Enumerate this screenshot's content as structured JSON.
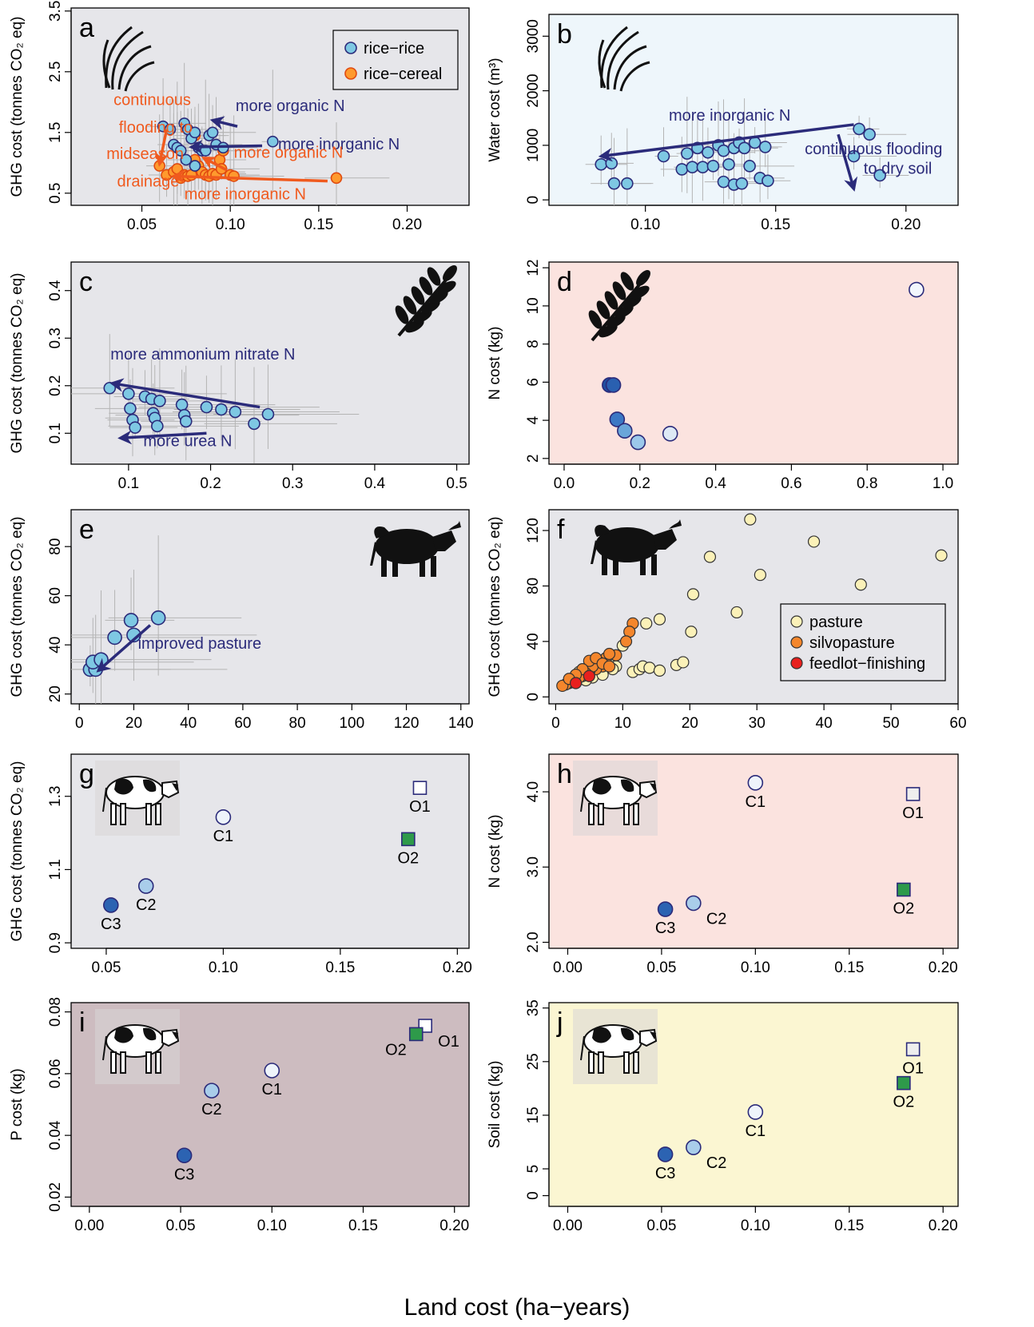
{
  "figure": {
    "x_axis_label": "Land cost (ha−years)"
  },
  "colors": {
    "rice_rice": "#7ec8e3",
    "rice_cereal": "#ff9a2e",
    "blue_arrow": "#2b2b7a",
    "orange_arrow": "#f05a1e",
    "bg_grey": "#e6e6ea",
    "bg_blue": "#eef6fb",
    "bg_pink": "#fbe3df",
    "bg_mauve": "#cdbcc0",
    "bg_yellow": "#fbf6d2",
    "pasture": "#fbf1b8",
    "silvopasture": "#f4862c",
    "feedlot": "#e8201e",
    "organic_green": "#2e9a4a"
  },
  "chart_data": [
    {
      "id": "a",
      "type": "scatter",
      "panel_letter": "a",
      "icon": "rice-icon",
      "ylabel": "GHG cost (tonnes CO₂ eq)",
      "xlim": [
        0.01,
        0.235
      ],
      "ylim": [
        0.3,
        3.55
      ],
      "xticks": [
        0.05,
        0.1,
        0.15,
        0.2
      ],
      "xtick_labels": [
        "0.05",
        "0.10",
        "0.15",
        "0.20"
      ],
      "yticks": [
        0.5,
        1.5,
        2.5,
        3.5
      ],
      "ytick_labels": [
        "0.5",
        "1.5",
        "2.5",
        "3.5"
      ],
      "legend": {
        "position": "top-right",
        "entries": [
          {
            "label": "rice−rice",
            "color": "#7ec8e3"
          },
          {
            "label": "rice−cereal",
            "color": "#ff9a2e"
          }
        ]
      },
      "series": [
        {
          "name": "rice−rice",
          "color": "#7ec8e3",
          "x": [
            0.062,
            0.066,
            0.068,
            0.07,
            0.072,
            0.074,
            0.076,
            0.078,
            0.08,
            0.082,
            0.084,
            0.086,
            0.088,
            0.09,
            0.092,
            0.096,
            0.124,
            0.075,
            0.08
          ],
          "y": [
            1.6,
            1.55,
            1.3,
            1.25,
            1.2,
            1.65,
            1.55,
            1.4,
            1.5,
            1.25,
            1.2,
            1.2,
            1.45,
            1.5,
            1.3,
            1.25,
            1.35,
            1.05,
            0.95
          ]
        },
        {
          "name": "rice−cereal",
          "color": "#ff9a2e",
          "x": [
            0.06,
            0.064,
            0.068,
            0.07,
            0.072,
            0.074,
            0.076,
            0.078,
            0.08,
            0.082,
            0.084,
            0.086,
            0.088,
            0.09,
            0.092,
            0.094,
            0.096,
            0.1,
            0.102,
            0.16,
            0.08,
            0.095
          ],
          "y": [
            0.95,
            0.8,
            0.85,
            0.9,
            0.75,
            0.8,
            0.78,
            0.8,
            1.45,
            0.95,
            0.85,
            0.8,
            0.78,
            0.82,
            0.8,
            1.05,
            1.2,
            0.8,
            0.78,
            0.75,
            1.05,
            0.9
          ]
        }
      ],
      "annotations": [
        {
          "text": "more organic N",
          "color": "#2b2b7a"
        },
        {
          "text": "more inorganic N",
          "color": "#2b2b7a"
        },
        {
          "text": "continuous",
          "color": "#f05a1e"
        },
        {
          "text": "flooding to",
          "color": "#f05a1e"
        },
        {
          "text": "midseason",
          "color": "#f05a1e"
        },
        {
          "text": "drainage",
          "color": "#f05a1e"
        },
        {
          "text": "more organic N",
          "color": "#f05a1e"
        },
        {
          "text": "more inorganic N",
          "color": "#f05a1e"
        }
      ]
    },
    {
      "id": "b",
      "type": "scatter",
      "panel_letter": "b",
      "icon": "rice-icon",
      "ylabel": "Water cost (m³)",
      "xlim": [
        0.063,
        0.22
      ],
      "ylim": [
        -100,
        3400
      ],
      "xticks": [
        0.1,
        0.15,
        0.2
      ],
      "xtick_labels": [
        "0.10",
        "0.15",
        "0.20"
      ],
      "yticks": [
        0,
        1000,
        2000,
        3000
      ],
      "ytick_labels": [
        "0",
        "1000",
        "2000",
        "3000"
      ],
      "series": [
        {
          "name": "",
          "color": "#7ec8e3",
          "x": [
            0.083,
            0.087,
            0.088,
            0.093,
            0.107,
            0.114,
            0.116,
            0.118,
            0.12,
            0.122,
            0.124,
            0.126,
            0.128,
            0.13,
            0.132,
            0.134,
            0.136,
            0.138,
            0.14,
            0.142,
            0.144,
            0.146,
            0.147,
            0.18,
            0.182,
            0.186,
            0.19,
            0.13,
            0.134,
            0.137
          ],
          "y": [
            650,
            670,
            300,
            300,
            800,
            560,
            850,
            600,
            950,
            600,
            870,
            620,
            1000,
            900,
            650,
            950,
            1050,
            950,
            620,
            1050,
            400,
            970,
            350,
            800,
            1300,
            1200,
            450,
            330,
            280,
            300
          ]
        }
      ],
      "annotations": [
        {
          "text": "more inorganic N",
          "color": "#2b2b7a"
        },
        {
          "text": "continuous flooding",
          "color": "#2b2b7a"
        },
        {
          "text": "to dry soil",
          "color": "#2b2b7a"
        }
      ]
    },
    {
      "id": "c",
      "type": "scatter",
      "panel_letter": "c",
      "icon": "wheat-icon",
      "ylabel": "GHG cost (tonnes CO₂ eq)",
      "xlim": [
        0.03,
        0.515
      ],
      "ylim": [
        0.035,
        0.46
      ],
      "xticks": [
        0.1,
        0.2,
        0.3,
        0.4,
        0.5
      ],
      "xtick_labels": [
        "0.1",
        "0.2",
        "0.3",
        "0.4",
        "0.5"
      ],
      "yticks": [
        0.1,
        0.2,
        0.3,
        0.4
      ],
      "ytick_labels": [
        "0.1",
        "0.2",
        "0.3",
        "0.4"
      ],
      "series": [
        {
          "name": "",
          "color": "#7ec8e3",
          "x": [
            0.077,
            0.1,
            0.102,
            0.105,
            0.108,
            0.12,
            0.128,
            0.13,
            0.132,
            0.135,
            0.138,
            0.165,
            0.168,
            0.17,
            0.195,
            0.213,
            0.23,
            0.253,
            0.27
          ],
          "y": [
            0.195,
            0.183,
            0.152,
            0.128,
            0.112,
            0.177,
            0.172,
            0.142,
            0.132,
            0.115,
            0.168,
            0.16,
            0.138,
            0.125,
            0.155,
            0.15,
            0.145,
            0.12,
            0.14
          ]
        }
      ],
      "annotations": [
        {
          "text": "more ammonium nitrate N",
          "color": "#2b2b7a"
        },
        {
          "text": "more urea N",
          "color": "#2b2b7a"
        }
      ]
    },
    {
      "id": "d",
      "type": "scatter",
      "panel_letter": "d",
      "icon": "wheat-icon",
      "ylabel": "N cost (kg)",
      "xlim": [
        -0.04,
        1.04
      ],
      "ylim": [
        1.7,
        12.3
      ],
      "xticks": [
        0.0,
        0.2,
        0.4,
        0.6,
        0.8,
        1.0
      ],
      "xtick_labels": [
        "0.0",
        "0.2",
        "0.4",
        "0.6",
        "0.8",
        "1.0"
      ],
      "yticks": [
        2,
        4,
        6,
        8,
        10,
        12
      ],
      "ytick_labels": [
        "2",
        "4",
        "6",
        "8",
        "10",
        "12"
      ],
      "series": [
        {
          "name": "",
          "color": "#7ec8e3",
          "x": [
            0.12,
            0.13,
            0.14,
            0.16,
            0.195,
            0.28,
            0.93
          ],
          "y": [
            5.85,
            5.85,
            4.05,
            3.45,
            2.85,
            3.3,
            10.85
          ],
          "fills": [
            "#1e4fa0",
            "#2a60b0",
            "#3b78c4",
            "#6aa6d9",
            "#9cc8ea",
            "#dde9f5",
            "#f2f6fc"
          ]
        }
      ]
    },
    {
      "id": "e",
      "type": "scatter",
      "panel_letter": "e",
      "icon": "bull-icon",
      "ylabel": "GHG cost (tonnes CO₂ eq)",
      "xlim": [
        -3,
        143
      ],
      "ylim": [
        16,
        95
      ],
      "xticks": [
        0,
        20,
        40,
        60,
        80,
        100,
        120,
        140
      ],
      "xtick_labels": [
        "0",
        "20",
        "40",
        "60",
        "80",
        "100",
        "120",
        "140"
      ],
      "yticks": [
        20,
        40,
        60,
        80
      ],
      "ytick_labels": [
        "20",
        "40",
        "60",
        "80"
      ],
      "series": [
        {
          "name": "",
          "color": "#7ec8e3",
          "x": [
            4,
            6,
            5,
            8,
            13,
            20,
            19,
            29
          ],
          "y": [
            30,
            30,
            33,
            34,
            43,
            44,
            50,
            51
          ]
        }
      ],
      "annotations": [
        {
          "text": "improved pasture",
          "color": "#2b2b7a"
        }
      ]
    },
    {
      "id": "f",
      "type": "scatter",
      "panel_letter": "f",
      "icon": "bull-icon",
      "ylabel": "GHG cost (tonnes CO₂ eq)",
      "xlim": [
        -1,
        60
      ],
      "ylim": [
        -5,
        135
      ],
      "xticks": [
        0,
        10,
        20,
        30,
        40,
        50,
        60
      ],
      "xtick_labels": [
        "0",
        "10",
        "20",
        "30",
        "40",
        "50",
        "60"
      ],
      "yticks": [
        0,
        40,
        80,
        120
      ],
      "ytick_labels": [
        "0",
        "40",
        "80",
        "120"
      ],
      "legend": {
        "position": "bottom-right",
        "entries": [
          {
            "label": "pasture",
            "color": "#fbf1b8"
          },
          {
            "label": "silvopasture",
            "color": "#f4862c"
          },
          {
            "label": "feedlot−finishing",
            "color": "#e8201e"
          }
        ]
      },
      "series": [
        {
          "name": "pasture",
          "color": "#fbf1b8",
          "x": [
            29,
            38.5,
            57.5,
            23,
            30.5,
            45.5,
            20.5,
            15.5,
            13.5,
            27,
            10,
            20.2,
            11.5,
            12.5,
            13,
            14,
            15.5,
            18,
            19,
            5,
            6,
            7,
            8,
            3,
            4,
            9,
            6.5,
            7.5,
            2.5,
            5.5,
            8.5,
            3.5,
            4.5,
            7
          ],
          "y": [
            128,
            112,
            102,
            101,
            88,
            81,
            74,
            56,
            53,
            61,
            37,
            47,
            18,
            20,
            22,
            21,
            19,
            23,
            25,
            20,
            22,
            18,
            24,
            15,
            16,
            22,
            25,
            28,
            12,
            14,
            20,
            18,
            12,
            16
          ]
        },
        {
          "name": "silvopasture",
          "color": "#f4862c",
          "x": [
            11.5,
            11,
            10.5,
            9,
            7.5,
            8,
            6.5,
            7,
            6,
            5,
            5.5,
            4,
            4.5,
            3,
            3.5,
            2,
            2.5,
            1.5,
            1,
            5,
            6,
            7,
            4,
            3,
            2,
            8
          ],
          "y": [
            53,
            47,
            40,
            30,
            28,
            31,
            25,
            22,
            20,
            18,
            22,
            15,
            17,
            12,
            14,
            10,
            11,
            9,
            8,
            26,
            28,
            24,
            20,
            16,
            13,
            22
          ]
        },
        {
          "name": "feedlot−finishing",
          "color": "#e8201e",
          "x": [
            5,
            3
          ],
          "y": [
            15,
            10
          ]
        }
      ]
    },
    {
      "id": "g",
      "type": "scatter",
      "panel_letter": "g",
      "icon": "cow-icon",
      "ylabel": "GHG cost (tonnes CO₂ eq)",
      "xlim": [
        0.035,
        0.205
      ],
      "ylim": [
        0.885,
        1.415
      ],
      "xticks": [
        0.05,
        0.1,
        0.15,
        0.2
      ],
      "xtick_labels": [
        "0.05",
        "0.10",
        "0.15",
        "0.20"
      ],
      "yticks": [
        0.9,
        1.1,
        1.3
      ],
      "ytick_labels": [
        "0.9",
        "1.1",
        "1.3"
      ],
      "points": [
        {
          "label": "C1",
          "x": 0.1,
          "y": 1.243,
          "shape": "circle",
          "fill": "#eef4fb",
          "label_pos": "below"
        },
        {
          "label": "C2",
          "x": 0.067,
          "y": 1.055,
          "shape": "circle",
          "fill": "#a9cdea",
          "label_pos": "below"
        },
        {
          "label": "C3",
          "x": 0.052,
          "y": 1.003,
          "shape": "circle",
          "fill": "#2c63b2",
          "label_pos": "below"
        },
        {
          "label": "O1",
          "x": 0.184,
          "y": 1.323,
          "shape": "square",
          "fill": "#ffffff",
          "label_pos": "below"
        },
        {
          "label": "O2",
          "x": 0.179,
          "y": 1.183,
          "shape": "square",
          "fill": "#2e9a4a",
          "label_pos": "below"
        }
      ]
    },
    {
      "id": "h",
      "type": "scatter",
      "panel_letter": "h",
      "icon": "cow-icon",
      "ylabel": "N cost (kg)",
      "xlim": [
        -0.01,
        0.208
      ],
      "ylim": [
        1.92,
        4.5
      ],
      "xticks": [
        0.0,
        0.05,
        0.1,
        0.15,
        0.2
      ],
      "xtick_labels": [
        "0.00",
        "0.05",
        "0.10",
        "0.15",
        "0.20"
      ],
      "yticks": [
        2.0,
        3.0,
        4.0
      ],
      "ytick_labels": [
        "2.0",
        "3.0",
        "4.0"
      ],
      "points": [
        {
          "label": "C1",
          "x": 0.1,
          "y": 4.12,
          "shape": "circle",
          "fill": "#eef4fb",
          "label_pos": "below"
        },
        {
          "label": "C2",
          "x": 0.067,
          "y": 2.52,
          "shape": "circle",
          "fill": "#a9cdea",
          "label_pos": "below-right"
        },
        {
          "label": "C3",
          "x": 0.052,
          "y": 2.44,
          "shape": "circle",
          "fill": "#2c63b2",
          "label_pos": "below"
        },
        {
          "label": "O1",
          "x": 0.184,
          "y": 3.97,
          "shape": "square",
          "fill": "#eeeeee",
          "label_pos": "below"
        },
        {
          "label": "O2",
          "x": 0.179,
          "y": 2.7,
          "shape": "square",
          "fill": "#2e9a4a",
          "label_pos": "below"
        }
      ]
    },
    {
      "id": "i",
      "type": "scatter",
      "panel_letter": "i",
      "icon": "cow-icon",
      "ylabel": "P cost (kg)",
      "xlim": [
        -0.01,
        0.208
      ],
      "ylim": [
        0.017,
        0.083
      ],
      "xticks": [
        0.0,
        0.05,
        0.1,
        0.15,
        0.2
      ],
      "xtick_labels": [
        "0.00",
        "0.05",
        "0.10",
        "0.15",
        "0.20"
      ],
      "yticks": [
        0.02,
        0.04,
        0.06,
        0.08
      ],
      "ytick_labels": [
        "0.02",
        "0.04",
        "0.06",
        "0.08"
      ],
      "points": [
        {
          "label": "C1",
          "x": 0.1,
          "y": 0.061,
          "shape": "circle",
          "fill": "#eef4fb",
          "label_pos": "below"
        },
        {
          "label": "C2",
          "x": 0.067,
          "y": 0.0545,
          "shape": "circle",
          "fill": "#a9cdea",
          "label_pos": "below"
        },
        {
          "label": "C3",
          "x": 0.052,
          "y": 0.0335,
          "shape": "circle",
          "fill": "#2c63b2",
          "label_pos": "below"
        },
        {
          "label": "O1",
          "x": 0.184,
          "y": 0.0755,
          "shape": "square",
          "fill": "#ffffff",
          "label_pos": "below-right"
        },
        {
          "label": "O2",
          "x": 0.179,
          "y": 0.0728,
          "shape": "square",
          "fill": "#2e9a4a",
          "label_pos": "below-left"
        }
      ]
    },
    {
      "id": "j",
      "type": "scatter",
      "panel_letter": "j",
      "icon": "cow-icon",
      "ylabel": "Soil cost (kg)",
      "xlim": [
        -0.01,
        0.208
      ],
      "ylim": [
        -2,
        36
      ],
      "xticks": [
        0.0,
        0.05,
        0.1,
        0.15,
        0.2
      ],
      "xtick_labels": [
        "0.00",
        "0.05",
        "0.10",
        "0.15",
        "0.20"
      ],
      "yticks": [
        0,
        5,
        15,
        25,
        35
      ],
      "ytick_labels": [
        "0",
        "5",
        "15",
        "25",
        "35"
      ],
      "points": [
        {
          "label": "C1",
          "x": 0.1,
          "y": 15.6,
          "shape": "circle",
          "fill": "#eef4fb",
          "label_pos": "below"
        },
        {
          "label": "C2",
          "x": 0.067,
          "y": 9.0,
          "shape": "circle",
          "fill": "#a9cdea",
          "label_pos": "below-right"
        },
        {
          "label": "C3",
          "x": 0.052,
          "y": 7.7,
          "shape": "circle",
          "fill": "#2c63b2",
          "label_pos": "below"
        },
        {
          "label": "O1",
          "x": 0.184,
          "y": 27.3,
          "shape": "square",
          "fill": "#eeeeee",
          "label_pos": "below"
        },
        {
          "label": "O2",
          "x": 0.179,
          "y": 21.0,
          "shape": "square",
          "fill": "#2e9a4a",
          "label_pos": "below"
        }
      ]
    }
  ]
}
